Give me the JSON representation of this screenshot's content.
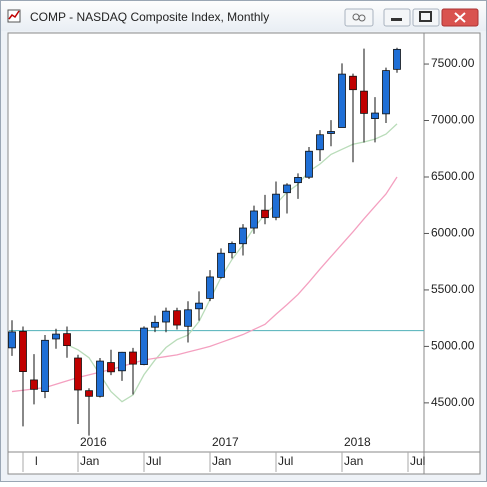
{
  "chart_data": {
    "type": "candlestick",
    "title": "COMP - NASDAQ Composite Index, Monthly",
    "categories": [
      null,
      "l",
      null,
      null,
      null,
      null,
      "Jan",
      null,
      null,
      null,
      null,
      null,
      "Jul",
      null,
      null,
      null,
      null,
      null,
      "Jan",
      null,
      null,
      null,
      null,
      null,
      "Jul",
      null,
      null,
      null,
      null,
      null,
      "Jan",
      null,
      null,
      null,
      null,
      null,
      "Jul"
    ],
    "years": [
      null,
      null,
      null,
      null,
      null,
      null,
      "2016",
      null,
      null,
      null,
      null,
      null,
      null,
      null,
      null,
      null,
      null,
      null,
      "2017",
      null,
      null,
      null,
      null,
      null,
      null,
      null,
      null,
      null,
      null,
      null,
      "2018",
      null,
      null,
      null,
      null,
      null,
      null
    ],
    "open": [
      4987,
      5133,
      4703,
      4600,
      5066,
      5113,
      4897,
      4608,
      4558,
      4857,
      4784,
      4950,
      4839,
      5170,
      5216,
      5316,
      5178,
      5333,
      5425,
      5611,
      5830,
      5909,
      6048,
      6206,
      6143,
      6361,
      6450,
      6498,
      6741,
      6885,
      6938,
      7392,
      7260,
      7017,
      7059,
      7453,
      null
    ],
    "high": [
      5231,
      5176,
      4932,
      5101,
      5156,
      5176,
      4926,
      4630,
      4897,
      4970,
      4951,
      4987,
      5177,
      5272,
      5343,
      5342,
      5400,
      5487,
      5675,
      5868,
      5929,
      6083,
      6246,
      6342,
      6460,
      6444,
      6532,
      6766,
      6915,
      7003,
      7506,
      7415,
      7637,
      7207,
      7468,
      7644,
      null
    ],
    "low": [
      4916,
      4292,
      4487,
      4542,
      4979,
      4899,
      4313,
      4210,
      4547,
      4746,
      4695,
      4574,
      4833,
      5126,
      5125,
      5150,
      5034,
      5228,
      5401,
      5600,
      5779,
      5805,
      5997,
      6082,
      6117,
      6177,
      6306,
      6482,
      6641,
      6772,
      6938,
      6630,
      6805,
      6806,
      6978,
      7423,
      null
    ],
    "close": [
      5128,
      4777,
      4620,
      5054,
      5109,
      5007,
      4614,
      4558,
      4870,
      4775,
      4948,
      4843,
      5162,
      5213,
      5312,
      5189,
      5324,
      5383,
      5615,
      5825,
      5912,
      6048,
      6199,
      6140,
      6348,
      6429,
      6496,
      6728,
      6874,
      6903,
      7411,
      7273,
      7063,
      7066,
      7442,
      7630,
      null
    ],
    "up_color": "#1f6fd6",
    "down_color": "#c00000",
    "lines": [
      {
        "color": "#b9dcb9",
        "values": [
          null,
          null,
          null,
          null,
          null,
          5015,
          4970,
          4900,
          4750,
          4600,
          4510,
          4570,
          4750,
          4880,
          4990,
          5060,
          5100,
          5220,
          5415,
          5610,
          5770,
          5900,
          6050,
          6170,
          6260,
          6365,
          6435,
          6550,
          6615,
          6700,
          6745,
          6790,
          6810,
          6835,
          6880,
          6970,
          null
        ]
      },
      {
        "color": "#f4a0c0",
        "values": [
          4600,
          4612,
          4624,
          4635,
          4665,
          4695,
          4725,
          4748,
          4772,
          4795,
          4823,
          4852,
          4880,
          4895,
          4910,
          4925,
          4950,
          4975,
          5000,
          5035,
          5070,
          5105,
          5150,
          5195,
          5285,
          5370,
          5460,
          5570,
          5685,
          5795,
          5905,
          6015,
          6130,
          6240,
          6350,
          6500,
          null
        ]
      }
    ],
    "hline": {
      "value": 5140,
      "color": "#4fb0b8"
    },
    "ylim": [
      4065,
      7766
    ],
    "yticks": [
      {
        "value": 4500,
        "label": "4500.00"
      },
      {
        "value": 5000,
        "label": "5000.00"
      },
      {
        "value": 5500,
        "label": "5500.00"
      },
      {
        "value": 6000,
        "label": "6000.00"
      },
      {
        "value": 6500,
        "label": "6500.00"
      },
      {
        "value": 7000,
        "label": "7000.00"
      },
      {
        "value": 7500,
        "label": "7500.00"
      }
    ]
  }
}
